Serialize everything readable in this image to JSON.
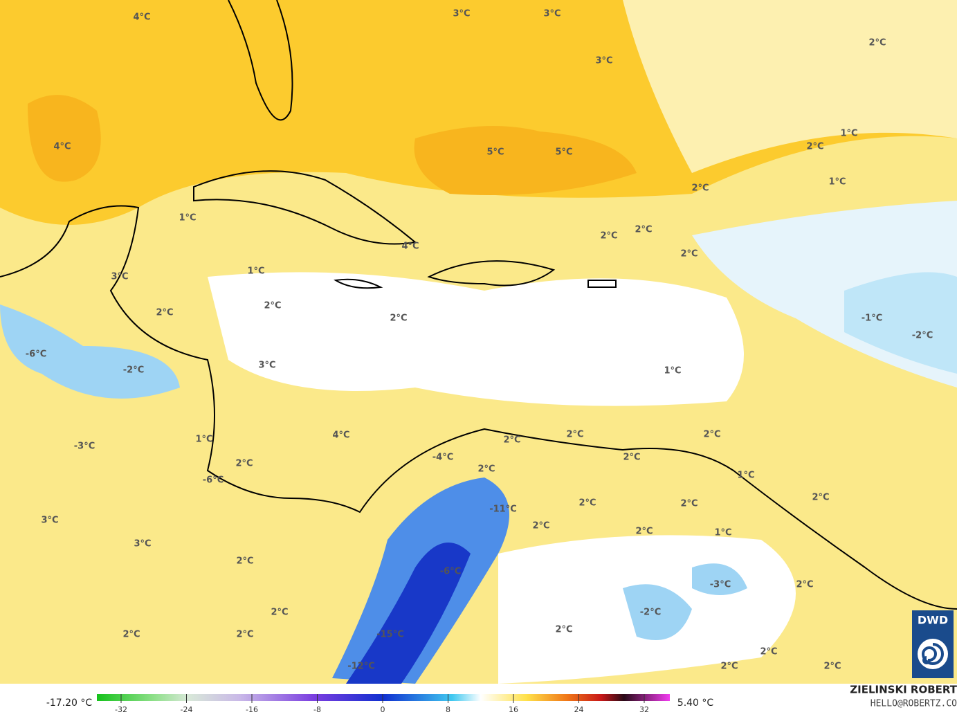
{
  "map": {
    "labels": [
      "4°C",
      "3°C",
      "3°C",
      "2°C",
      "3°C",
      "4°C",
      "5°C",
      "5°C",
      "1°C",
      "2°C",
      "2°C",
      "1°C",
      "1°C",
      "2°C",
      "2°C",
      "4°C",
      "2°C",
      "1°C",
      "3°C",
      "2°C",
      "2°C",
      "2°C",
      "-1°C",
      "-2°C",
      "-6°C",
      "-2°C",
      "3°C",
      "1°C",
      "4°C",
      "2°C",
      "2°C",
      "2°C",
      "-3°C",
      "1°C",
      "-4°C",
      "2°C",
      "2°C",
      "2°C",
      "1°C",
      "-6°C",
      "2°C",
      "2°C",
      "-11°C",
      "2°C",
      "3°C",
      "2°C",
      "2°C",
      "1°C",
      "3°C",
      "2°C",
      "-6°C",
      "-3°C",
      "2°C",
      "2°C",
      "-2°C",
      "2°C",
      "2°C",
      "2°C",
      "-15°C",
      "2°C",
      "-12°C",
      "2°C",
      "2°C"
    ]
  },
  "colorbar": {
    "min_label": "-17.20 °C",
    "max_label": "5.40 °C",
    "ticks": [
      -32,
      -24,
      -16,
      -8,
      0,
      8,
      16,
      24,
      32
    ]
  },
  "credit": {
    "name": "ZIELINSKI ROBERT",
    "contact": "HELLO@ROBERTZ.CO",
    "logo": "DWD"
  }
}
